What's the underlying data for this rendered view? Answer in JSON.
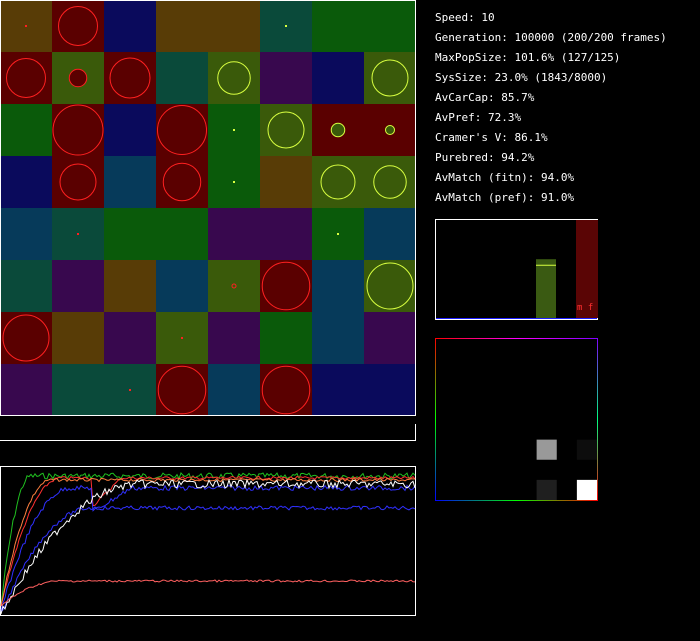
{
  "stats": {
    "speed": "Speed: 10",
    "generation": "Generation: 100000 (200/200 frames)",
    "max_pop_size": "MaxPopSize: 101.6% (127/125)",
    "sys_size": "SysSize: 23.0% (1843/8000)",
    "av_car_cap": "AvCarCap: 85.7%",
    "av_pref": "AvPref: 72.3%",
    "cramers_v": "Cramer's V: 86.1%",
    "purebred": "Purebred: 94.2%",
    "av_match_fitn": "AvMatch (fitn): 94.0%",
    "av_match_pref": "AvMatch (pref): 91.0%"
  },
  "histogram": {
    "label": "m f",
    "bars": [
      0.6,
      1.0
    ],
    "bar_colors": [
      "#3a5a12",
      "#5a0505"
    ]
  },
  "colors": {
    "patch_colors": {
      "B": "#583c06",
      "R": "#5a0000",
      "N": "#0a0a5c",
      "T": "#0a4a3a",
      "G": "#0a5a0a",
      "O": "#3a5a0a",
      "P": "#38084e",
      "D": "#063a5a",
      "Q": "#0a4a46"
    },
    "red_circle": "#ff2020",
    "yellow_circle": "#d8ff40",
    "plot_series": [
      "#ff3030",
      "#20c020",
      "#ff8040",
      "#3030ff",
      "#ffffff",
      "#ff6060"
    ]
  },
  "grid": {
    "rows": [
      [
        "B",
        "R",
        "N",
        "B",
        "B",
        "T",
        "G",
        "G"
      ],
      [
        "R",
        "O",
        "R",
        "T",
        "O",
        "P",
        "N",
        "O"
      ],
      [
        "G",
        "R",
        "N",
        "R",
        "G",
        "O",
        "R",
        "R"
      ],
      [
        "N",
        "R",
        "D",
        "R",
        "G",
        "B",
        "O",
        "O"
      ],
      [
        "D",
        "T",
        "G",
        "G",
        "P",
        "P",
        "G",
        "D"
      ],
      [
        "T",
        "P",
        "B",
        "D",
        "O",
        "R",
        "D",
        "O"
      ],
      [
        "R",
        "B",
        "P",
        "O",
        "P",
        "G",
        "D",
        "P"
      ],
      [
        "P",
        "T",
        "T",
        "R",
        "D",
        "R",
        "N",
        "N"
      ]
    ],
    "organisms": [
      {
        "r": 0,
        "c": 1,
        "size": 0.78,
        "kind": "red"
      },
      {
        "r": 0,
        "c": 0,
        "size": 0.05,
        "kind": "reddot"
      },
      {
        "r": 0,
        "c": 5,
        "size": 0.05,
        "kind": "yellowdot"
      },
      {
        "r": 1,
        "c": 0,
        "size": 0.78,
        "kind": "red"
      },
      {
        "r": 1,
        "c": 1,
        "size": 0.35,
        "kind": "redfill"
      },
      {
        "r": 1,
        "c": 2,
        "size": 0.8,
        "kind": "red"
      },
      {
        "r": 1,
        "c": 4,
        "size": 0.65,
        "kind": "yellow"
      },
      {
        "r": 1,
        "c": 7,
        "size": 0.72,
        "kind": "yellow"
      },
      {
        "r": 2,
        "c": 1,
        "size": 1.0,
        "kind": "red"
      },
      {
        "r": 2,
        "c": 3,
        "size": 0.98,
        "kind": "red"
      },
      {
        "r": 2,
        "c": 4,
        "size": 0.05,
        "kind": "yellowdot"
      },
      {
        "r": 2,
        "c": 5,
        "size": 0.72,
        "kind": "yellow"
      },
      {
        "r": 2,
        "c": 6,
        "size": 0.27,
        "kind": "yellowfill"
      },
      {
        "r": 2,
        "c": 7,
        "size": 0.18,
        "kind": "yellowfill"
      },
      {
        "r": 3,
        "c": 1,
        "size": 0.72,
        "kind": "red"
      },
      {
        "r": 3,
        "c": 3,
        "size": 0.75,
        "kind": "red"
      },
      {
        "r": 3,
        "c": 4,
        "size": 0.05,
        "kind": "yellowdot"
      },
      {
        "r": 3,
        "c": 6,
        "size": 0.68,
        "kind": "yellow"
      },
      {
        "r": 3,
        "c": 7,
        "size": 0.65,
        "kind": "yellow"
      },
      {
        "r": 4,
        "c": 1,
        "size": 0.05,
        "kind": "reddot"
      },
      {
        "r": 4,
        "c": 6,
        "size": 0.05,
        "kind": "yellowdot"
      },
      {
        "r": 5,
        "c": 4,
        "size": 0.08,
        "kind": "red"
      },
      {
        "r": 5,
        "c": 5,
        "size": 0.95,
        "kind": "red"
      },
      {
        "r": 5,
        "c": 7,
        "size": 0.92,
        "kind": "yellow"
      },
      {
        "r": 6,
        "c": 0,
        "size": 0.92,
        "kind": "red"
      },
      {
        "r": 6,
        "c": 3,
        "size": 0.05,
        "kind": "reddot"
      },
      {
        "r": 7,
        "c": 2,
        "size": 0.05,
        "kind": "reddot"
      },
      {
        "r": 7,
        "c": 3,
        "size": 0.95,
        "kind": "red"
      },
      {
        "r": 7,
        "c": 5,
        "size": 0.95,
        "kind": "red"
      }
    ]
  },
  "matrix": {
    "n": 8,
    "cells": [
      {
        "r": 5,
        "c": 5,
        "v": 0.6
      },
      {
        "r": 5,
        "c": 7,
        "v": 0.05
      },
      {
        "r": 7,
        "c": 5,
        "v": 0.12
      },
      {
        "r": 7,
        "c": 7,
        "v": 1.0
      }
    ]
  }
}
